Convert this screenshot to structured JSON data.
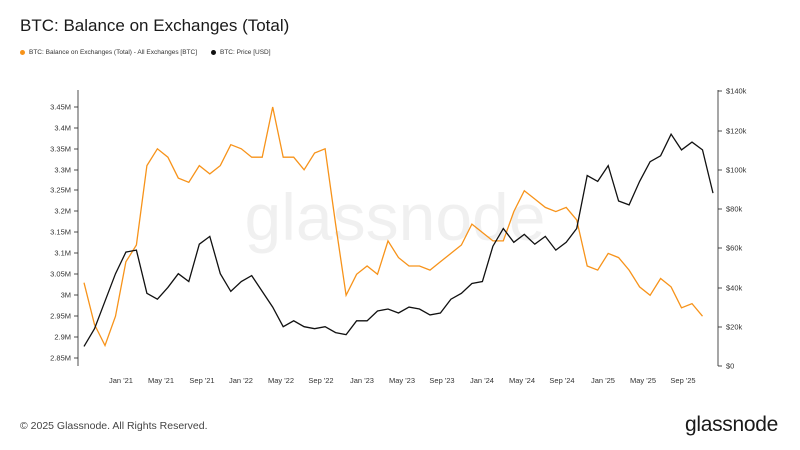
{
  "title": "BTC: Balance on Exchanges (Total)",
  "footer": "© 2025 Glassnode. All Rights Reserved.",
  "logo_text": "glassnode",
  "watermark": "glassnode",
  "colors": {
    "balance": "#f7931a",
    "price": "#111111"
  },
  "chart_data": {
    "type": "line",
    "x_ticks": [
      "Jan '21",
      "May '21",
      "Sep '21",
      "Jan '22",
      "May '22",
      "Sep '22",
      "Jan '23",
      "May '23",
      "Sep '23",
      "Jan '24",
      "May '24",
      "Sep '24",
      "Jan '25",
      "May '25",
      "Sep '25"
    ],
    "x_range": [
      "2020-11",
      "2025-11"
    ],
    "y_left": {
      "ticks": [
        "2.85M",
        "2.9M",
        "2.95M",
        "3M",
        "3.05M",
        "3.1M",
        "3.15M",
        "3.2M",
        "3.25M",
        "3.3M",
        "3.35M",
        "3.4M",
        "3.45M"
      ],
      "range": [
        2.825,
        3.475
      ]
    },
    "y_right": {
      "ticks": [
        "$0",
        "$20k",
        "$40k",
        "$60k",
        "$80k",
        "$100k",
        "$120k",
        "$140k"
      ],
      "range": [
        0,
        140
      ]
    },
    "legend_position": "top-left",
    "series": [
      {
        "name": "BTC: Balance on Exchanges (Total) - All Exchanges [BTC]",
        "axis": "left",
        "color": "#f7931a",
        "points": [
          [
            "2020-11",
            3.03
          ],
          [
            "2020-12",
            2.93
          ],
          [
            "2021-01",
            2.88
          ],
          [
            "2021-02",
            2.95
          ],
          [
            "2021-03",
            3.08
          ],
          [
            "2021-04",
            3.12
          ],
          [
            "2021-05",
            3.31
          ],
          [
            "2021-06",
            3.35
          ],
          [
            "2021-07",
            3.33
          ],
          [
            "2021-08",
            3.28
          ],
          [
            "2021-09",
            3.27
          ],
          [
            "2021-10",
            3.31
          ],
          [
            "2021-11",
            3.29
          ],
          [
            "2021-12",
            3.31
          ],
          [
            "2022-01",
            3.36
          ],
          [
            "2022-02",
            3.35
          ],
          [
            "2022-03",
            3.33
          ],
          [
            "2022-04",
            3.33
          ],
          [
            "2022-05",
            3.45
          ],
          [
            "2022-06",
            3.33
          ],
          [
            "2022-07",
            3.33
          ],
          [
            "2022-08",
            3.3
          ],
          [
            "2022-09",
            3.34
          ],
          [
            "2022-10",
            3.35
          ],
          [
            "2022-11",
            3.17
          ],
          [
            "2022-12",
            3.0
          ],
          [
            "2023-01",
            3.05
          ],
          [
            "2023-02",
            3.07
          ],
          [
            "2023-03",
            3.05
          ],
          [
            "2023-04",
            3.13
          ],
          [
            "2023-05",
            3.09
          ],
          [
            "2023-06",
            3.07
          ],
          [
            "2023-07",
            3.07
          ],
          [
            "2023-08",
            3.06
          ],
          [
            "2023-09",
            3.08
          ],
          [
            "2023-10",
            3.1
          ],
          [
            "2023-11",
            3.12
          ],
          [
            "2023-12",
            3.17
          ],
          [
            "2024-01",
            3.15
          ],
          [
            "2024-02",
            3.13
          ],
          [
            "2024-03",
            3.13
          ],
          [
            "2024-04",
            3.2
          ],
          [
            "2024-05",
            3.25
          ],
          [
            "2024-06",
            3.23
          ],
          [
            "2024-07",
            3.21
          ],
          [
            "2024-08",
            3.2
          ],
          [
            "2024-09",
            3.21
          ],
          [
            "2024-10",
            3.18
          ],
          [
            "2024-11",
            3.07
          ],
          [
            "2024-12",
            3.06
          ],
          [
            "2025-01",
            3.1
          ],
          [
            "2025-02",
            3.09
          ],
          [
            "2025-03",
            3.06
          ],
          [
            "2025-04",
            3.02
          ],
          [
            "2025-05",
            3.0
          ],
          [
            "2025-06",
            3.04
          ],
          [
            "2025-07",
            3.02
          ],
          [
            "2025-08",
            2.97
          ],
          [
            "2025-09",
            2.98
          ],
          [
            "2025-10",
            2.95
          ]
        ]
      },
      {
        "name": "BTC: Price [USD]",
        "axis": "right",
        "color": "#111111",
        "points": [
          [
            "2020-11",
            10
          ],
          [
            "2020-12",
            19
          ],
          [
            "2021-01",
            33
          ],
          [
            "2021-02",
            47
          ],
          [
            "2021-03",
            58
          ],
          [
            "2021-04",
            59
          ],
          [
            "2021-05",
            37
          ],
          [
            "2021-06",
            34
          ],
          [
            "2021-07",
            40
          ],
          [
            "2021-08",
            47
          ],
          [
            "2021-09",
            43
          ],
          [
            "2021-10",
            62
          ],
          [
            "2021-11",
            66
          ],
          [
            "2021-12",
            47
          ],
          [
            "2022-01",
            38
          ],
          [
            "2022-02",
            43
          ],
          [
            "2022-03",
            46
          ],
          [
            "2022-04",
            38
          ],
          [
            "2022-05",
            30
          ],
          [
            "2022-06",
            20
          ],
          [
            "2022-07",
            23
          ],
          [
            "2022-08",
            20
          ],
          [
            "2022-09",
            19
          ],
          [
            "2022-10",
            20
          ],
          [
            "2022-11",
            17
          ],
          [
            "2022-12",
            16
          ],
          [
            "2023-01",
            23
          ],
          [
            "2023-02",
            23
          ],
          [
            "2023-03",
            28
          ],
          [
            "2023-04",
            29
          ],
          [
            "2023-05",
            27
          ],
          [
            "2023-06",
            30
          ],
          [
            "2023-07",
            29
          ],
          [
            "2023-08",
            26
          ],
          [
            "2023-09",
            27
          ],
          [
            "2023-10",
            34
          ],
          [
            "2023-11",
            37
          ],
          [
            "2023-12",
            42
          ],
          [
            "2024-01",
            43
          ],
          [
            "2024-02",
            61
          ],
          [
            "2024-03",
            70
          ],
          [
            "2024-04",
            63
          ],
          [
            "2024-05",
            67
          ],
          [
            "2024-06",
            62
          ],
          [
            "2024-07",
            66
          ],
          [
            "2024-08",
            59
          ],
          [
            "2024-09",
            63
          ],
          [
            "2024-10",
            70
          ],
          [
            "2024-11",
            97
          ],
          [
            "2024-12",
            94
          ],
          [
            "2025-01",
            102
          ],
          [
            "2025-02",
            84
          ],
          [
            "2025-03",
            82
          ],
          [
            "2025-04",
            94
          ],
          [
            "2025-05",
            104
          ],
          [
            "2025-06",
            107
          ],
          [
            "2025-07",
            118
          ],
          [
            "2025-08",
            110
          ],
          [
            "2025-09",
            114
          ],
          [
            "2025-10",
            110
          ],
          [
            "2025-11",
            88
          ]
        ]
      }
    ]
  }
}
